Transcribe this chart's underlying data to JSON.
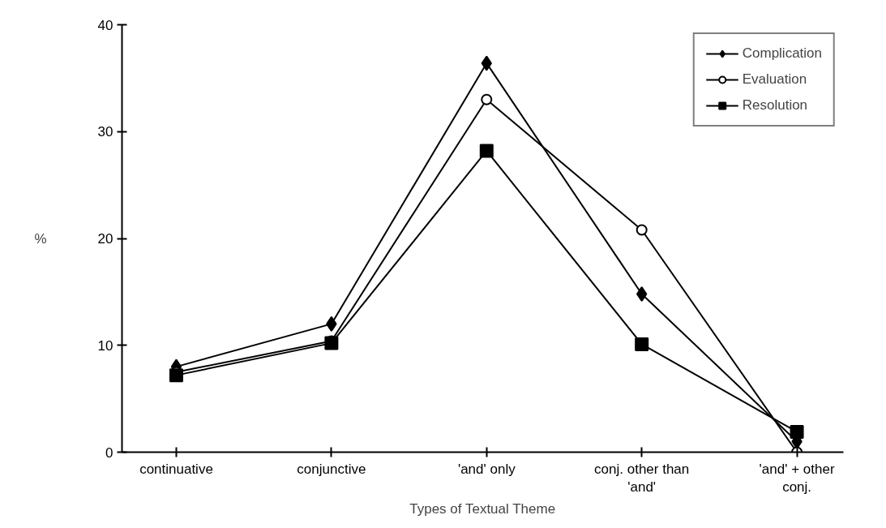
{
  "chart_data": {
    "type": "line",
    "xlabel": "Types of Textual Theme",
    "ylabel": "%",
    "categories": [
      "continuative",
      "conjunctive",
      "'and' only",
      "conj. other than\n'and'",
      "'and' + other\nconj."
    ],
    "ylim": [
      0,
      40
    ],
    "yticks": [
      0,
      10,
      20,
      30,
      40
    ],
    "grid": false,
    "legend": "top right",
    "series": [
      {
        "name": "Complication",
        "color": "#000000",
        "marker": "diamond",
        "values": [
          8.0,
          12.0,
          36.4,
          14.8,
          1.0
        ]
      },
      {
        "name": "Evaluation",
        "color": "#000000",
        "marker": "circle",
        "values": [
          7.5,
          10.4,
          33.0,
          20.8,
          0.0
        ]
      },
      {
        "name": "Resolution",
        "color": "#000000",
        "marker": "square",
        "values": [
          7.2,
          10.2,
          28.2,
          10.1,
          1.9
        ]
      }
    ]
  }
}
